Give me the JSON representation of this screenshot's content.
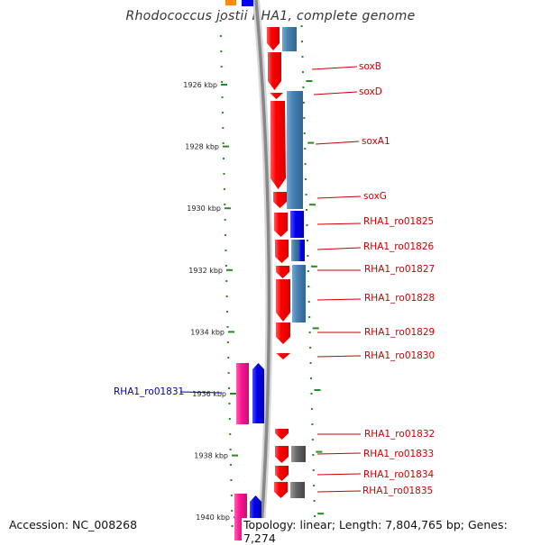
{
  "title": "Rhodococcus jostii RHA1, complete genome",
  "accession_label": "Accession: NC_008268",
  "summary_label": "Topology: linear; Length: 7,804,765 bp; Genes: 7,274",
  "colors": {
    "ruler_tick": "#228b22",
    "gene_red": "#ff0000",
    "gene_blue": "#0000ee",
    "gene_steel": "#4682b4",
    "gene_gray": "#666666",
    "gene_pink": "#ff1493",
    "gene_orange": "#ff8c00",
    "backbone": "#888888",
    "label_red": "#cc0000",
    "label_blue": "#0000aa"
  },
  "ruler": {
    "ticks": [
      {
        "kbp": 1926,
        "label": "1926 kbp"
      },
      {
        "kbp": 1928,
        "label": "1928 kbp"
      },
      {
        "kbp": 1930,
        "label": "1930 kbp"
      },
      {
        "kbp": 1932,
        "label": "1932 kbp"
      },
      {
        "kbp": 1934,
        "label": "1934 kbp"
      },
      {
        "kbp": 1936,
        "label": "1936 kbp"
      },
      {
        "kbp": 1938,
        "label": "1938 kbp"
      },
      {
        "kbp": 1940,
        "label": "1940 kbp"
      }
    ]
  },
  "genes": [
    {
      "name": "soxB",
      "strand": "-"
    },
    {
      "name": "soxD",
      "strand": "-"
    },
    {
      "name": "soxA1",
      "strand": "-"
    },
    {
      "name": "soxG",
      "strand": "-"
    },
    {
      "name": "RHA1_ro01825",
      "strand": "-"
    },
    {
      "name": "RHA1_ro01826",
      "strand": "-"
    },
    {
      "name": "RHA1_ro01827",
      "strand": "-"
    },
    {
      "name": "RHA1_ro01828",
      "strand": "-"
    },
    {
      "name": "RHA1_ro01829",
      "strand": "-"
    },
    {
      "name": "RHA1_ro01830",
      "strand": "-"
    },
    {
      "name": "RHA1_ro01831",
      "strand": "+"
    },
    {
      "name": "RHA1_ro01832",
      "strand": "-"
    },
    {
      "name": "RHA1_ro01833",
      "strand": "-"
    },
    {
      "name": "RHA1_ro01834",
      "strand": "-"
    },
    {
      "name": "RHA1_ro01835",
      "strand": "-"
    }
  ]
}
